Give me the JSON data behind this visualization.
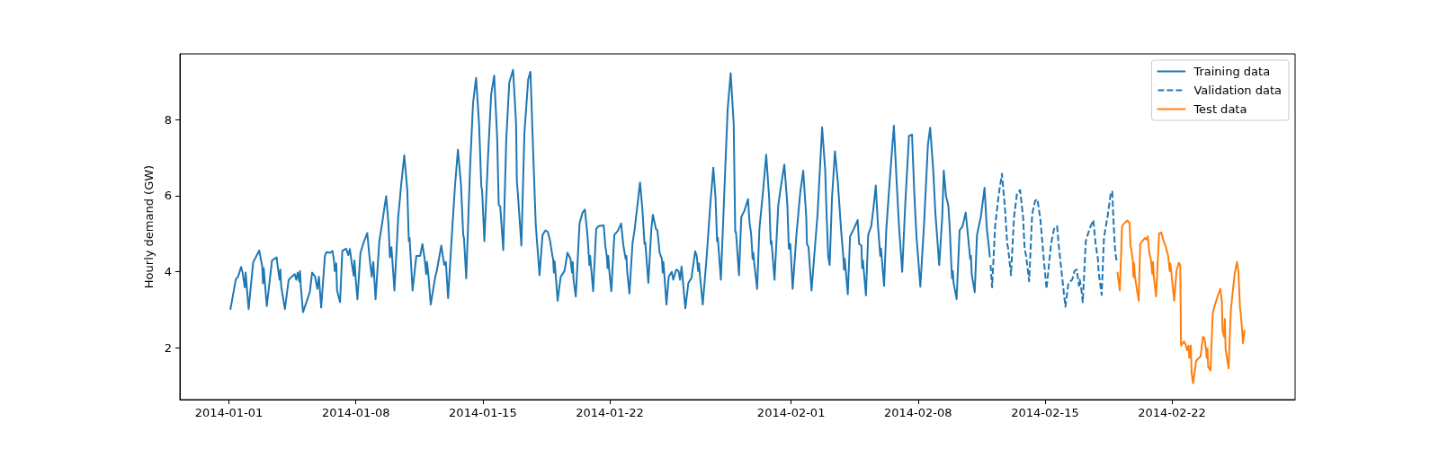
{
  "chart_data": {
    "type": "line",
    "ylabel": "Hourly demand (GW)",
    "legend": "top right",
    "xlim": [
      "2013-12-29T07:00",
      "2014-02-28T19:00"
    ],
    "xticks": [
      "2014-01-01",
      "2014-01-08",
      "2014-01-15",
      "2014-01-22",
      "2014-02-01",
      "2014-02-08",
      "2014-02-15",
      "2014-02-22"
    ],
    "ylim": [
      0.64,
      9.73
    ],
    "yticks": [
      2,
      4,
      6,
      8
    ],
    "series": [
      {
        "name": "Training data",
        "color": "#1f77b4",
        "line_style": "solid",
        "x": [
          "2014-01-01T02:00",
          "2014-01-01T09:00",
          "2014-01-01T12:00",
          "2014-01-01T16:00",
          "2014-01-01T18:00",
          "2014-01-01T21:00",
          "2014-01-01T22:00",
          "2014-01-02T02:00",
          "2014-01-02T08:00",
          "2014-01-02T16:00",
          "2014-01-02T20:00",
          "2014-01-02T21:00",
          "2014-01-02T22:00",
          "2014-01-03T02:00",
          "2014-01-03T09:00",
          "2014-01-03T15:00",
          "2014-01-03T17:00",
          "2014-01-03T19:00",
          "2014-01-03T20:00",
          "2014-01-03T21:00",
          "2014-01-04T02:00",
          "2014-01-04T07:00",
          "2014-01-04T11:00",
          "2014-01-04T15:00",
          "2014-01-04T17:00",
          "2014-01-04T19:00",
          "2014-01-04T21:00",
          "2014-01-04T22:00",
          "2014-01-04T23:00",
          "2014-01-05T02:00",
          "2014-01-05T11:00",
          "2014-01-05T14:00",
          "2014-01-05T18:00",
          "2014-01-05T21:00",
          "2014-01-05T23:00",
          "2014-01-06T02:00",
          "2014-01-06T07:00",
          "2014-01-06T09:00",
          "2014-01-06T14:00",
          "2014-01-06T17:00",
          "2014-01-06T19:00",
          "2014-01-06T20:00",
          "2014-01-06T22:00",
          "2014-01-06T23:00",
          "2014-01-07T03:00",
          "2014-01-07T06:00",
          "2014-01-07T11:00",
          "2014-01-07T14:00",
          "2014-01-07T16:00",
          "2014-01-07T18:00",
          "2014-01-07T21:00",
          "2014-01-07T22:00",
          "2014-01-08T00:00",
          "2014-01-08T02:00",
          "2014-01-08T06:00",
          "2014-01-08T10:00",
          "2014-01-08T15:00",
          "2014-01-08T18:00",
          "2014-01-08T21:00",
          "2014-01-08T23:00",
          "2014-01-09T02:00",
          "2014-01-09T07:00",
          "2014-01-09T11:00",
          "2014-01-09T16:00",
          "2014-01-09T19:00",
          "2014-01-09T21:00",
          "2014-01-09T23:00",
          "2014-01-10T03:00",
          "2014-01-10T08:00",
          "2014-01-10T12:00",
          "2014-01-10T16:00",
          "2014-01-10T20:00",
          "2014-01-10T22:00",
          "2014-01-10T23:00",
          "2014-01-11T03:00",
          "2014-01-11T08:00",
          "2014-01-11T13:00",
          "2014-01-11T16:00",
          "2014-01-11T19:00",
          "2014-01-11T21:00",
          "2014-01-11T22:00",
          "2014-01-12T00:00",
          "2014-01-12T03:00",
          "2014-01-12T09:00",
          "2014-01-12T11:00",
          "2014-01-12T17:00",
          "2014-01-12T19:00",
          "2014-01-12T21:00",
          "2014-01-12T23:00",
          "2014-01-13T02:00",
          "2014-01-13T07:00",
          "2014-01-13T11:00",
          "2014-01-13T15:00",
          "2014-01-13T19:00",
          "2014-01-13T22:00",
          "2014-01-13T23:00",
          "2014-01-14T02:00",
          "2014-01-14T07:00",
          "2014-01-14T11:00",
          "2014-01-14T15:00",
          "2014-01-14T19:00",
          "2014-01-14T22:00",
          "2014-01-14T23:00",
          "2014-01-15T02:00",
          "2014-01-15T07:00",
          "2014-01-15T11:00",
          "2014-01-15T15:00",
          "2014-01-15T19:00",
          "2014-01-15T21:00",
          "2014-01-15T23:00",
          "2014-01-16T03:00",
          "2014-01-16T07:00",
          "2014-01-16T11:00",
          "2014-01-16T16:00",
          "2014-01-16T20:00",
          "2014-01-16T21:00",
          "2014-01-16T22:00",
          "2014-01-17T03:00",
          "2014-01-17T07:00",
          "2014-01-17T12:00",
          "2014-01-17T15:00",
          "2014-01-17T18:00",
          "2014-01-17T22:00",
          "2014-01-18T03:00",
          "2014-01-18T07:00",
          "2014-01-18T11:00",
          "2014-01-18T14:00",
          "2014-01-18T17:00",
          "2014-01-18T20:00",
          "2014-01-18T21:00",
          "2014-01-18T22:00",
          "2014-01-18T23:00",
          "2014-01-19T03:00",
          "2014-01-19T07:00",
          "2014-01-19T12:00",
          "2014-01-19T16:00",
          "2014-01-19T20:00",
          "2014-01-19T22:00",
          "2014-01-19T23:00",
          "2014-01-20T00:00",
          "2014-01-20T03:00",
          "2014-01-20T08:00",
          "2014-01-20T12:00",
          "2014-01-20T15:00",
          "2014-01-20T18:00",
          "2014-01-20T19:00",
          "2014-01-20T21:00",
          "2014-01-20T22:00",
          "2014-01-20T23:00",
          "2014-01-21T02:00",
          "2014-01-21T06:00",
          "2014-01-21T09:00",
          "2014-01-21T16:00",
          "2014-01-21T18:00",
          "2014-01-21T20:00",
          "2014-01-21T21:00",
          "2014-01-21T22:00",
          "2014-01-21T23:00",
          "2014-01-22T02:00",
          "2014-01-22T06:00",
          "2014-01-22T11:00",
          "2014-01-22T15:00",
          "2014-01-22T18:00",
          "2014-01-22T21:00",
          "2014-01-22T22:00",
          "2014-01-22T23:00",
          "2014-01-23T02:00",
          "2014-01-23T06:00",
          "2014-01-23T09:00",
          "2014-01-23T16:00",
          "2014-01-23T19:00",
          "2014-01-23T22:00",
          "2014-01-23T23:00",
          "2014-01-24T03:00",
          "2014-01-24T07:00",
          "2014-01-24T09:00",
          "2014-01-24T13:00",
          "2014-01-24T15:00",
          "2014-01-24T18:00",
          "2014-01-24T21:00",
          "2014-01-24T22:00",
          "2014-01-24T23:00",
          "2014-01-25T03:00",
          "2014-01-25T06:00",
          "2014-01-25T10:00",
          "2014-01-25T12:00",
          "2014-01-25T16:00",
          "2014-01-25T19:00",
          "2014-01-25T21:00",
          "2014-01-25T23:00",
          "2014-01-26T04:00",
          "2014-01-26T08:00",
          "2014-01-26T12:00",
          "2014-01-26T17:00",
          "2014-01-26T19:00",
          "2014-01-26T21:00",
          "2014-01-26T22:00",
          "2014-01-26T23:00",
          "2014-01-27T03:00",
          "2014-01-27T08:00",
          "2014-01-27T13:00",
          "2014-01-27T17:00",
          "2014-01-27T20:00",
          "2014-01-27T22:00",
          "2014-01-27T23:00",
          "2014-01-28T03:00",
          "2014-01-28T08:00",
          "2014-01-28T12:00",
          "2014-01-28T16:00",
          "2014-01-28T20:00",
          "2014-01-28T22:00",
          "2014-01-28T23:00",
          "2014-01-29T03:00",
          "2014-01-29T06:00",
          "2014-01-29T10:00",
          "2014-01-29T15:00",
          "2014-01-29T17:00",
          "2014-01-29T19:00",
          "2014-01-29T21:00",
          "2014-01-29T22:00",
          "2014-01-29T23:00",
          "2014-01-30T03:00",
          "2014-01-30T06:00",
          "2014-01-30T11:00",
          "2014-01-30T15:00",
          "2014-01-30T19:00",
          "2014-01-30T21:00",
          "2014-01-30T22:00",
          "2014-01-31T02:00",
          "2014-01-31T07:00",
          "2014-01-31T11:00",
          "2014-01-31T15:00",
          "2014-01-31T19:00",
          "2014-01-31T21:00",
          "2014-01-31T23:00",
          "2014-02-01T02:00",
          "2014-02-01T07:00",
          "2014-02-01T12:00",
          "2014-02-01T16:00",
          "2014-02-01T20:00",
          "2014-02-01T21:00",
          "2014-02-01T23:00",
          "2014-02-02T03:00",
          "2014-02-02T11:00",
          "2014-02-02T17:00",
          "2014-02-02T21:00",
          "2014-02-02T23:00",
          "2014-02-03T01:00",
          "2014-02-03T03:00",
          "2014-02-03T06:00",
          "2014-02-03T10:00",
          "2014-02-03T14:00",
          "2014-02-03T18:00",
          "2014-02-03T21:00",
          "2014-02-03T22:00",
          "2014-02-03T23:00",
          "2014-02-04T03:00",
          "2014-02-04T06:00",
          "2014-02-04T11:00",
          "2014-02-04T16:00",
          "2014-02-04T18:00",
          "2014-02-04T21:00",
          "2014-02-04T22:00",
          "2014-02-04T23:00",
          "2014-02-05T03:00",
          "2014-02-05T06:00",
          "2014-02-05T10:00",
          "2014-02-05T13:00",
          "2014-02-05T16:00",
          "2014-02-05T19:00",
          "2014-02-05T22:00",
          "2014-02-05T23:00",
          "2014-02-06T03:00",
          "2014-02-06T06:00",
          "2014-02-06T11:00",
          "2014-02-06T16:00",
          "2014-02-06T20:00",
          "2014-02-06T23:00",
          "2014-02-07T03:00",
          "2014-02-07T07:00",
          "2014-02-07T12:00",
          "2014-02-07T16:00",
          "2014-02-07T19:00",
          "2014-02-07T22:00",
          "2014-02-07T23:00",
          "2014-02-08T03:00",
          "2014-02-08T08:00",
          "2014-02-08T13:00",
          "2014-02-08T16:00",
          "2014-02-08T20:00",
          "2014-02-08T23:00",
          "2014-02-09T04:00",
          "2014-02-09T08:00",
          "2014-02-09T10:00",
          "2014-02-09T13:00",
          "2014-02-09T16:00",
          "2014-02-09T18:00",
          "2014-02-09T20:00",
          "2014-02-09T21:00",
          "2014-02-09T22:00",
          "2014-02-09T23:00",
          "2014-02-10T03:00",
          "2014-02-10T07:00",
          "2014-02-10T11:00",
          "2014-02-10T15:00",
          "2014-02-10T18:00",
          "2014-02-10T21:00",
          "2014-02-10T22:00",
          "2014-02-10T23:00",
          "2014-02-11T03:00",
          "2014-02-11T06:00",
          "2014-02-11T11:00",
          "2014-02-11T16:00",
          "2014-02-11T19:00",
          "2014-02-11T22:00",
          "2014-02-11T23:00"
        ],
        "values": [
          3.02,
          3.8,
          3.87,
          4.13,
          3.98,
          3.59,
          3.98,
          3.02,
          4.25,
          4.56,
          4.14,
          3.7,
          4.1,
          3.1,
          4.3,
          4.38,
          4.06,
          3.79,
          4.06,
          3.63,
          3.02,
          3.79,
          3.87,
          3.94,
          3.79,
          3.98,
          3.75,
          4.02,
          3.63,
          2.94,
          3.47,
          3.98,
          3.87,
          3.55,
          3.87,
          3.06,
          4.42,
          4.52,
          4.5,
          4.55,
          4.3,
          4.02,
          4.22,
          3.51,
          3.2,
          4.55,
          4.61,
          4.44,
          4.6,
          4.3,
          3.9,
          4.3,
          3.75,
          3.28,
          4.5,
          4.76,
          5.02,
          4.38,
          3.87,
          4.26,
          3.28,
          4.81,
          5.32,
          5.99,
          5.28,
          4.38,
          4.65,
          3.51,
          5.44,
          6.31,
          7.06,
          6.15,
          4.81,
          4.89,
          3.51,
          4.42,
          4.42,
          4.73,
          4.34,
          3.94,
          4.26,
          3.9,
          3.14,
          3.87,
          4.02,
          4.69,
          4.42,
          4.18,
          4.26,
          3.31,
          4.97,
          6.23,
          7.21,
          6.31,
          4.97,
          4.89,
          3.83,
          6.7,
          8.43,
          9.1,
          7.88,
          6.23,
          6.15,
          4.81,
          7.09,
          8.67,
          9.16,
          7.49,
          5.76,
          5.72,
          4.57,
          7.49,
          8.98,
          9.31,
          7.88,
          6.39,
          6.15,
          4.69,
          7.65,
          9.06,
          9.26,
          7.49,
          5.24,
          3.91,
          4.97,
          5.09,
          5.05,
          4.81,
          4.42,
          4.34,
          3.98,
          4.28,
          3.24,
          3.87,
          4.02,
          4.5,
          4.34,
          3.98,
          4.26,
          3.79,
          3.35,
          5.28,
          5.56,
          5.64,
          5.05,
          4.81,
          4.18,
          4.42,
          4.18,
          3.49,
          5.13,
          5.2,
          5.22,
          4.69,
          4.42,
          4.1,
          4.42,
          4.1,
          3.49,
          4.97,
          5.09,
          5.27,
          4.69,
          4.34,
          4.42,
          4.02,
          3.43,
          4.73,
          5.13,
          6.35,
          5.68,
          4.73,
          4.77,
          3.71,
          5.13,
          5.5,
          5.13,
          5.09,
          4.5,
          4.34,
          3.98,
          4.26,
          3.14,
          3.87,
          4.0,
          3.79,
          4.06,
          4.02,
          3.79,
          4.14,
          3.04,
          3.71,
          3.83,
          4.54,
          4.42,
          4.02,
          4.22,
          3.98,
          3.14,
          4.34,
          5.76,
          6.74,
          5.91,
          4.81,
          4.89,
          3.79,
          6.31,
          8.28,
          9.22,
          7.88,
          5.05,
          5.05,
          3.91,
          5.44,
          5.6,
          5.91,
          5.28,
          5.01,
          4.34,
          4.5,
          4.26,
          3.55,
          5.13,
          6.15,
          7.08,
          5.91,
          4.73,
          4.81,
          3.79,
          5.76,
          6.31,
          6.82,
          5.76,
          4.61,
          4.73,
          3.55,
          4.97,
          6.07,
          6.66,
          5.44,
          4.73,
          4.65,
          3.51,
          5.52,
          7.8,
          6.7,
          5.48,
          4.42,
          4.18,
          5.91,
          7.17,
          6.31,
          5.13,
          4.42,
          4.06,
          4.34,
          3.41,
          4.93,
          5.13,
          5.36,
          4.73,
          4.69,
          4.1,
          4.3,
          3.38,
          4.97,
          5.2,
          5.68,
          6.27,
          5.2,
          4.42,
          4.61,
          3.63,
          5.13,
          6.54,
          7.84,
          6.23,
          5.13,
          4.0,
          5.76,
          7.57,
          7.61,
          6.07,
          4.89,
          4.65,
          3.61,
          5.28,
          7.33,
          7.79,
          6.7,
          5.52,
          4.18,
          5.44,
          6.66,
          5.99,
          5.76,
          5.13,
          4.18,
          3.83,
          4.02,
          3.71,
          3.28,
          5.09,
          5.2,
          5.56,
          4.97,
          4.34,
          4.42,
          3.94,
          3.46,
          4.97,
          5.44,
          6.21,
          5.13,
          4.61,
          4.4
        ]
      },
      {
        "name": "Validation data",
        "color": "#1f77b4",
        "line_style": "dashed",
        "x": [
          "2014-02-12T00:00",
          "2014-02-12T02:00",
          "2014-02-12T06:00",
          "2014-02-12T11:00",
          "2014-02-12T15:00",
          "2014-02-12T19:00",
          "2014-02-12T22:00",
          "2014-02-12T23:00",
          "2014-02-13T03:00",
          "2014-02-13T07:00",
          "2014-02-13T11:00",
          "2014-02-13T15:00",
          "2014-02-13T19:00",
          "2014-02-13T21:00",
          "2014-02-13T23:00",
          "2014-02-14T03:00",
          "2014-02-14T07:00",
          "2014-02-14T11:00",
          "2014-02-14T14:00",
          "2014-02-14T18:00",
          "2014-02-14T21:00",
          "2014-02-14T22:00",
          "2014-02-15T02:00",
          "2014-02-15T08:00",
          "2014-02-15T12:00",
          "2014-02-15T16:00",
          "2014-02-15T18:00",
          "2014-02-15T21:00",
          "2014-02-15T22:00",
          "2014-02-16T03:00",
          "2014-02-16T07:00",
          "2014-02-16T12:00",
          "2014-02-16T15:00",
          "2014-02-16T18:00",
          "2014-02-16T21:00",
          "2014-02-16T22:00",
          "2014-02-17T00:00",
          "2014-02-17T02:00",
          "2014-02-17T06:00",
          "2014-02-17T11:00",
          "2014-02-17T16:00",
          "2014-02-17T19:00",
          "2014-02-17T22:00",
          "2014-02-17T23:00",
          "2014-02-18T03:00",
          "2014-02-18T06:00",
          "2014-02-18T11:00",
          "2014-02-18T15:00",
          "2014-02-18T17:00",
          "2014-02-18T19:00",
          "2014-02-18T21:00",
          "2014-02-18T23:00"
        ],
        "values": [
          4.18,
          3.59,
          5.2,
          6.07,
          6.58,
          5.68,
          4.73,
          4.65,
          3.91,
          5.44,
          6.07,
          6.15,
          5.44,
          4.61,
          4.42,
          3.75,
          5.52,
          5.87,
          5.91,
          5.36,
          4.65,
          4.42,
          3.55,
          4.73,
          5.13,
          5.2,
          4.73,
          4.18,
          3.98,
          3.08,
          3.71,
          3.79,
          4.02,
          4.06,
          3.63,
          3.79,
          3.55,
          3.2,
          4.81,
          5.13,
          5.36,
          4.73,
          4.34,
          3.98,
          3.39,
          4.89,
          5.48,
          6.07,
          6.11,
          5.2,
          4.5,
          4.26
        ]
      },
      {
        "name": "Test data",
        "color": "#ff7f0e",
        "line_style": "solid",
        "x": [
          "2014-02-19T00:00",
          "2014-02-19T03:00",
          "2014-02-19T06:00",
          "2014-02-19T09:00",
          "2014-02-19T13:00",
          "2014-02-19T16:00",
          "2014-02-19T17:00",
          "2014-02-19T20:00",
          "2014-02-19T21:00",
          "2014-02-19T22:00",
          "2014-02-19T23:00",
          "2014-02-20T04:00",
          "2014-02-20T06:00",
          "2014-02-20T09:00",
          "2014-02-20T12:00",
          "2014-02-20T14:00",
          "2014-02-20T16:00",
          "2014-02-20T18:00",
          "2014-02-20T20:00",
          "2014-02-20T22:00",
          "2014-02-20T23:00",
          "2014-02-21T00:00",
          "2014-02-21T03:00",
          "2014-02-21T07:00",
          "2014-02-21T10:00",
          "2014-02-21T13:00",
          "2014-02-21T16:00",
          "2014-02-21T19:00",
          "2014-02-21T21:00",
          "2014-02-21T22:00",
          "2014-02-22T01:00",
          "2014-02-22T03:00",
          "2014-02-22T06:00",
          "2014-02-22T09:00",
          "2014-02-22T11:00",
          "2014-02-22T12:00",
          "2014-02-22T16:00",
          "2014-02-22T18:00",
          "2014-02-22T20:00",
          "2014-02-22T22:00",
          "2014-02-22T23:00",
          "2014-02-23T01:00",
          "2014-02-23T02:00",
          "2014-02-23T04:00",
          "2014-02-23T08:00",
          "2014-02-23T14:00",
          "2014-02-23T17:00",
          "2014-02-23T19:00",
          "2014-02-23T21:00",
          "2014-02-23T22:00",
          "2014-02-23T23:00",
          "2014-02-24T00:00",
          "2014-02-24T03:00",
          "2014-02-24T06:00",
          "2014-02-24T08:00",
          "2014-02-24T13:00",
          "2014-02-24T16:00",
          "2014-02-24T18:00",
          "2014-02-24T19:00",
          "2014-02-24T21:00",
          "2014-02-24T22:00",
          "2014-02-24T23:00",
          "2014-02-25T03:00",
          "2014-02-25T06:00",
          "2014-02-25T08:00",
          "2014-02-25T11:00",
          "2014-02-25T14:00",
          "2014-02-25T16:00",
          "2014-02-25T18:00",
          "2014-02-25T19:00",
          "2014-02-25T21:00",
          "2014-02-25T22:00",
          "2014-02-26T00:00"
        ],
        "values": [
          3.98,
          3.51,
          5.2,
          5.28,
          5.35,
          5.28,
          4.73,
          4.34,
          3.87,
          4.22,
          3.87,
          3.24,
          4.73,
          4.81,
          4.89,
          4.85,
          4.93,
          4.5,
          4.34,
          3.94,
          4.26,
          3.87,
          3.35,
          5.01,
          5.03,
          4.81,
          4.65,
          4.42,
          4.02,
          4.22,
          3.63,
          3.24,
          4.02,
          4.24,
          4.18,
          2.06,
          2.17,
          2.09,
          1.94,
          2.06,
          1.74,
          2.06,
          1.35,
          1.07,
          1.66,
          1.78,
          2.29,
          2.25,
          1.98,
          1.74,
          1.98,
          1.5,
          1.41,
          2.91,
          3.07,
          3.39,
          3.55,
          3.24,
          2.45,
          2.29,
          2.76,
          1.98,
          1.46,
          3.0,
          3.39,
          3.94,
          4.26,
          4.02,
          3.08,
          2.92,
          2.45,
          2.13,
          2.45
        ]
      }
    ]
  }
}
